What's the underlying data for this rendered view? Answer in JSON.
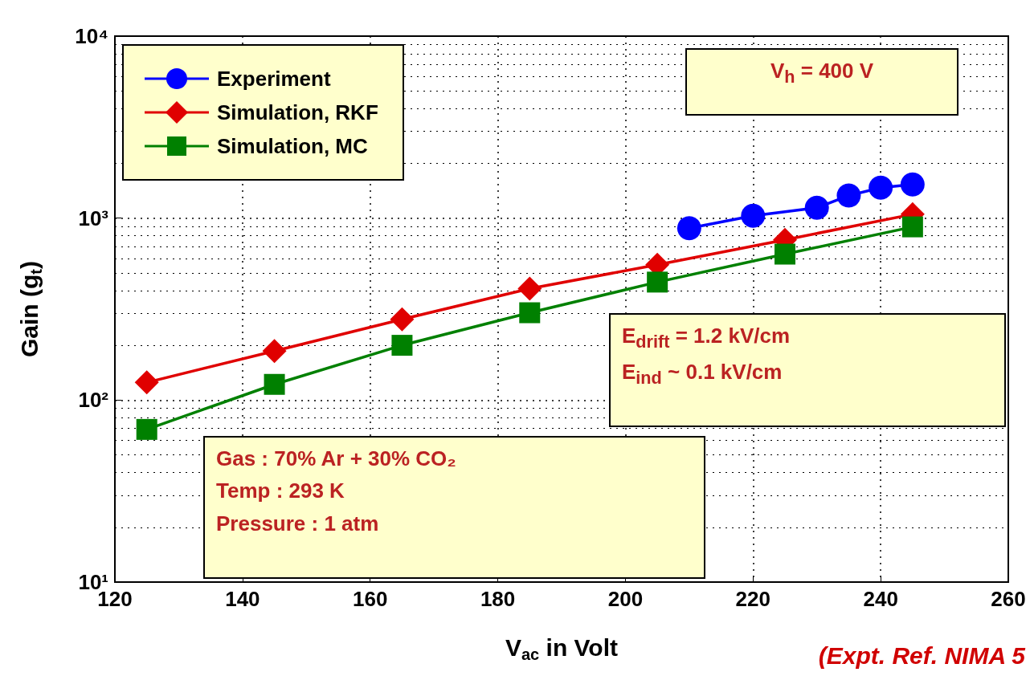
{
  "chart_data": {
    "type": "line",
    "xlabel": "V$_{ac}$ in Volt",
    "ylabel": "Gain (g$_{t}$)",
    "log": "y",
    "grid": true,
    "legend": "top left",
    "line_style": "solid",
    "xlim": [
      120,
      260
    ],
    "xticks": [
      120,
      140,
      160,
      180,
      200,
      220,
      240,
      260
    ],
    "ylim": [
      10,
      10000
    ],
    "yticks": [
      {
        "value": 10,
        "label": "10¹"
      },
      {
        "value": 100,
        "label": "10²"
      },
      {
        "value": 1000,
        "label": "10³"
      },
      {
        "value": 10000,
        "label": "10⁴"
      }
    ],
    "series": [
      {
        "name": "Experiment",
        "color": "#0000ff",
        "marker": "circle",
        "x": [
          210,
          220,
          230,
          235,
          240,
          245
        ],
        "values": [
          880,
          1030,
          1140,
          1330,
          1470,
          1530
        ]
      },
      {
        "name": "Simulation, RKF",
        "color": "#e00000",
        "marker": "diamond",
        "x": [
          125,
          145,
          165,
          185,
          205,
          225,
          245
        ],
        "values": [
          125,
          186,
          278,
          410,
          554,
          760,
          1050
        ]
      },
      {
        "name": "Simulation, MC",
        "color": "#008000",
        "marker": "square",
        "x": [
          125,
          145,
          165,
          185,
          205,
          225,
          245
        ],
        "values": [
          69,
          122,
          200,
          302,
          445,
          634,
          895
        ]
      }
    ],
    "annotations": [
      "V$_{h}$ = 400 V",
      "E$_{drift}$ = 1.2 kV/cm\nE$_{ind}$ ~ 0.1 kV/cm",
      "Gas : 70% Ar + 30% CO₂\nTemp : 293 K\nPressure : 1 atm",
      "(Expt. Ref. NIMA 5"
    ]
  }
}
